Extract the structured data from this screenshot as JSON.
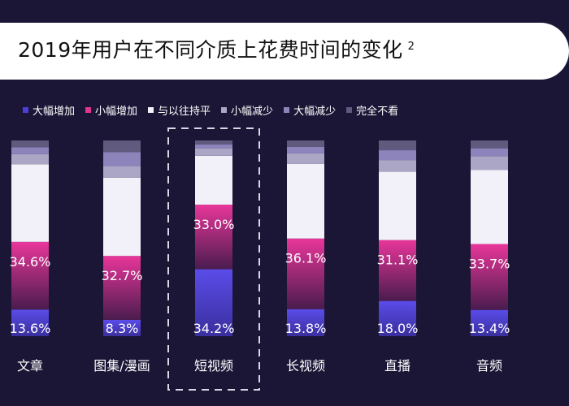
{
  "title": "2019年用户在不同介质上花费时间的变化",
  "title_superscript": "2",
  "legend": [
    {
      "label": "大幅增加",
      "color": "#4b3fd6"
    },
    {
      "label": "小幅增加",
      "color": "#e0358f"
    },
    {
      "label": "与以往持平",
      "color": "#f2f0f8"
    },
    {
      "label": "小幅减少",
      "color": "#aba6c6"
    },
    {
      "label": "大幅减少",
      "color": "#8c84bb"
    },
    {
      "label": "完全不看",
      "color": "#605b7e"
    }
  ],
  "chart_data": {
    "type": "bar",
    "stacked": true,
    "percent": true,
    "categories": [
      "文章",
      "图集/漫画",
      "短视频",
      "长视频",
      "直播",
      "音频"
    ],
    "highlight_category": "短视频",
    "series": [
      {
        "name": "大幅增加",
        "values": [
          13.6,
          8.3,
          34.2,
          13.8,
          18.0,
          13.4
        ]
      },
      {
        "name": "小幅增加",
        "values": [
          34.6,
          32.7,
          33.0,
          36.1,
          31.1,
          33.7
        ]
      },
      {
        "name": "与以往持平",
        "values": [
          39.6,
          40.0,
          25.0,
          38.1,
          34.9,
          37.9
        ]
      },
      {
        "name": "小幅减少",
        "values": [
          5.2,
          6.0,
          3.8,
          5.4,
          6.0,
          7.0
        ]
      },
      {
        "name": "大幅减少",
        "values": [
          3.5,
          7.0,
          2.0,
          3.3,
          5.0,
          4.0
        ]
      },
      {
        "name": "完全不看",
        "values": [
          3.5,
          6.0,
          2.0,
          3.3,
          5.0,
          4.0
        ]
      }
    ],
    "data_labels": [
      {
        "category": "文章",
        "series": "大幅增加",
        "text": "13.6%"
      },
      {
        "category": "文章",
        "series": "小幅增加",
        "text": "34.6%"
      },
      {
        "category": "图集/漫画",
        "series": "大幅增加",
        "text": "8.3%"
      },
      {
        "category": "图集/漫画",
        "series": "小幅增加",
        "text": "32.7%"
      },
      {
        "category": "短视频",
        "series": "大幅增加",
        "text": "34.2%"
      },
      {
        "category": "短视频",
        "series": "小幅增加",
        "text": "33.0%"
      },
      {
        "category": "长视频",
        "series": "大幅增加",
        "text": "13.8%"
      },
      {
        "category": "长视频",
        "series": "小幅增加",
        "text": "36.1%"
      },
      {
        "category": "直播",
        "series": "大幅增加",
        "text": "18.0%"
      },
      {
        "category": "直播",
        "series": "小幅增加",
        "text": "31.1%"
      },
      {
        "category": "音频",
        "series": "大幅增加",
        "text": "13.4%"
      },
      {
        "category": "音频",
        "series": "小幅增加",
        "text": "33.7%"
      }
    ]
  }
}
